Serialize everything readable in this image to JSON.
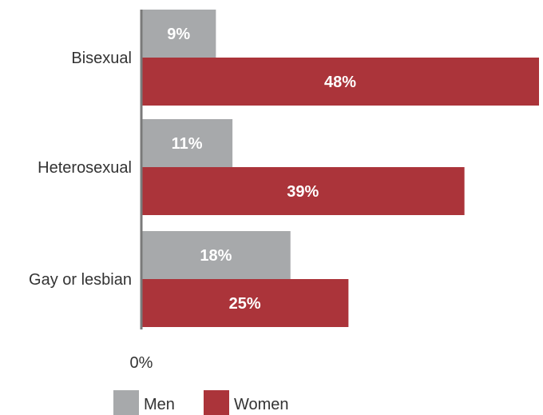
{
  "chart_data": {
    "type": "bar",
    "orientation": "horizontal",
    "categories": [
      "Bisexual",
      "Heterosexual",
      "Gay or lesbian"
    ],
    "series": [
      {
        "name": "Men",
        "values": [
          9,
          11,
          18
        ],
        "labels": [
          "9%",
          "11%",
          "18%"
        ]
      },
      {
        "name": "Women",
        "values": [
          48,
          39,
          25
        ],
        "labels": [
          "48%",
          "39%",
          "25%"
        ]
      }
    ],
    "x_tick_labels": [
      "0%"
    ],
    "xlim": [
      0,
      48
    ],
    "grid": false,
    "legend": {
      "position": "bottom-center"
    }
  },
  "colors": {
    "men": "#a7a9ab",
    "women": "#ab343a",
    "axis": "#7a7a7a",
    "text": "#333333",
    "bar_label": "#ffffff"
  }
}
